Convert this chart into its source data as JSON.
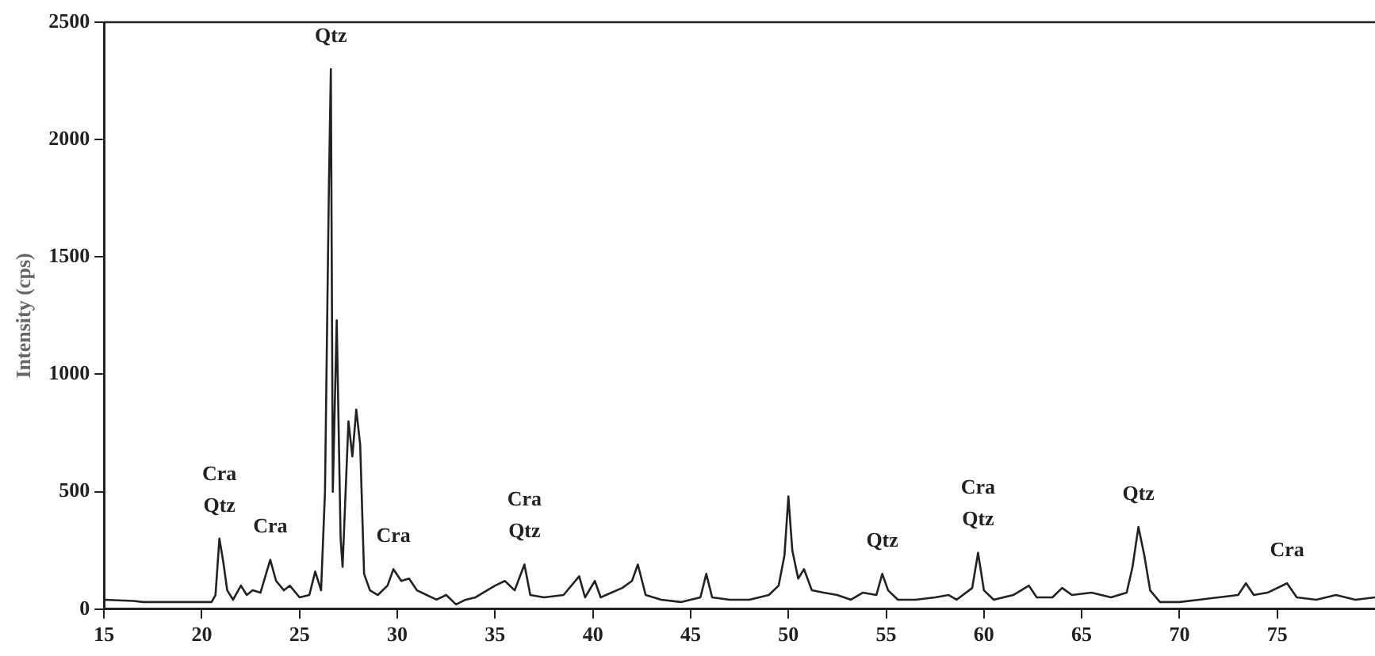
{
  "chart_data": {
    "type": "line",
    "ylabel": "Intensity (cps)",
    "x": [
      15,
      16.5,
      17,
      20.5,
      20.7,
      20.9,
      21.1,
      21.3,
      21.6,
      22,
      22.3,
      22.6,
      23,
      23.5,
      23.8,
      24.2,
      24.5,
      25,
      25.5,
      25.8,
      26.1,
      26.3,
      26.5,
      26.6,
      26.7,
      26.9,
      27.1,
      27.2,
      27.5,
      27.7,
      27.9,
      28.1,
      28.3,
      28.6,
      29,
      29.5,
      29.8,
      30.2,
      30.6,
      31,
      31.5,
      32,
      32.5,
      33,
      33.5,
      34,
      35,
      35.5,
      36,
      36.5,
      36.8,
      37.5,
      38.5,
      39.3,
      39.6,
      40.1,
      40.4,
      41.5,
      42,
      42.3,
      42.7,
      43.5,
      44.5,
      45.5,
      45.8,
      46.1,
      47,
      48,
      49,
      49.5,
      49.8,
      50,
      50.2,
      50.5,
      50.8,
      51.2,
      51.8,
      52.5,
      53.2,
      53.8,
      54.5,
      54.8,
      55.1,
      55.6,
      56.5,
      57.5,
      58.2,
      58.6,
      59.4,
      59.7,
      60,
      60.5,
      61.5,
      62.3,
      62.7,
      63.5,
      64,
      64.5,
      65.5,
      66.5,
      67.3,
      67.6,
      67.9,
      68.2,
      68.5,
      69,
      70,
      71,
      72,
      73,
      73.4,
      73.8,
      74.5,
      75.5,
      76,
      77,
      78,
      79,
      80
    ],
    "series": [
      {
        "color": "#222222",
        "values": [
          40,
          35,
          30,
          30,
          60,
          300,
          200,
          80,
          40,
          100,
          60,
          80,
          70,
          210,
          120,
          80,
          100,
          50,
          60,
          160,
          80,
          500,
          1800,
          2300,
          500,
          1230,
          300,
          180,
          800,
          650,
          850,
          700,
          150,
          80,
          60,
          100,
          170,
          120,
          130,
          80,
          60,
          40,
          60,
          20,
          40,
          50,
          100,
          120,
          80,
          190,
          60,
          50,
          60,
          140,
          50,
          120,
          50,
          90,
          120,
          190,
          60,
          40,
          30,
          50,
          150,
          50,
          40,
          40,
          60,
          100,
          230,
          480,
          250,
          130,
          170,
          80,
          70,
          60,
          40,
          70,
          60,
          150,
          80,
          40,
          40,
          50,
          60,
          40,
          90,
          240,
          80,
          40,
          60,
          100,
          50,
          50,
          90,
          60,
          70,
          50,
          70,
          180,
          350,
          230,
          80,
          30,
          30,
          40,
          50,
          60,
          110,
          60,
          70,
          110,
          50,
          40,
          60,
          40,
          50
        ]
      }
    ],
    "xlim": [
      15,
      80
    ],
    "xticks": [
      15,
      20,
      25,
      30,
      35,
      40,
      45,
      50,
      55,
      60,
      65,
      70,
      75
    ],
    "ylim": [
      0,
      2500
    ],
    "yticks": [
      0,
      500,
      1000,
      1500,
      2000,
      2500
    ],
    "grid": false,
    "legend": false,
    "marker": "none",
    "line_style": "solid",
    "annotations": [
      {
        "text": "Qtz",
        "x": 26.6,
        "y": 2300
      },
      {
        "text": "Cra",
        "x": 20.9,
        "y": 300
      },
      {
        "text": "Qtz",
        "x": 20.9,
        "y": 300
      },
      {
        "text": "Cra",
        "x": 23.5,
        "y": 210
      },
      {
        "text": "Cra",
        "x": 29.8,
        "y": 170
      },
      {
        "text": "Cra",
        "x": 36.5,
        "y": 190
      },
      {
        "text": "Qtz",
        "x": 36.5,
        "y": 190
      },
      {
        "text": "Qtz",
        "x": 54.8,
        "y": 150
      },
      {
        "text": "Cra",
        "x": 59.7,
        "y": 240
      },
      {
        "text": "Qtz",
        "x": 59.7,
        "y": 240
      },
      {
        "text": "Qtz",
        "x": 67.9,
        "y": 350
      },
      {
        "text": "Cra",
        "x": 75.5,
        "y": 110
      }
    ]
  }
}
